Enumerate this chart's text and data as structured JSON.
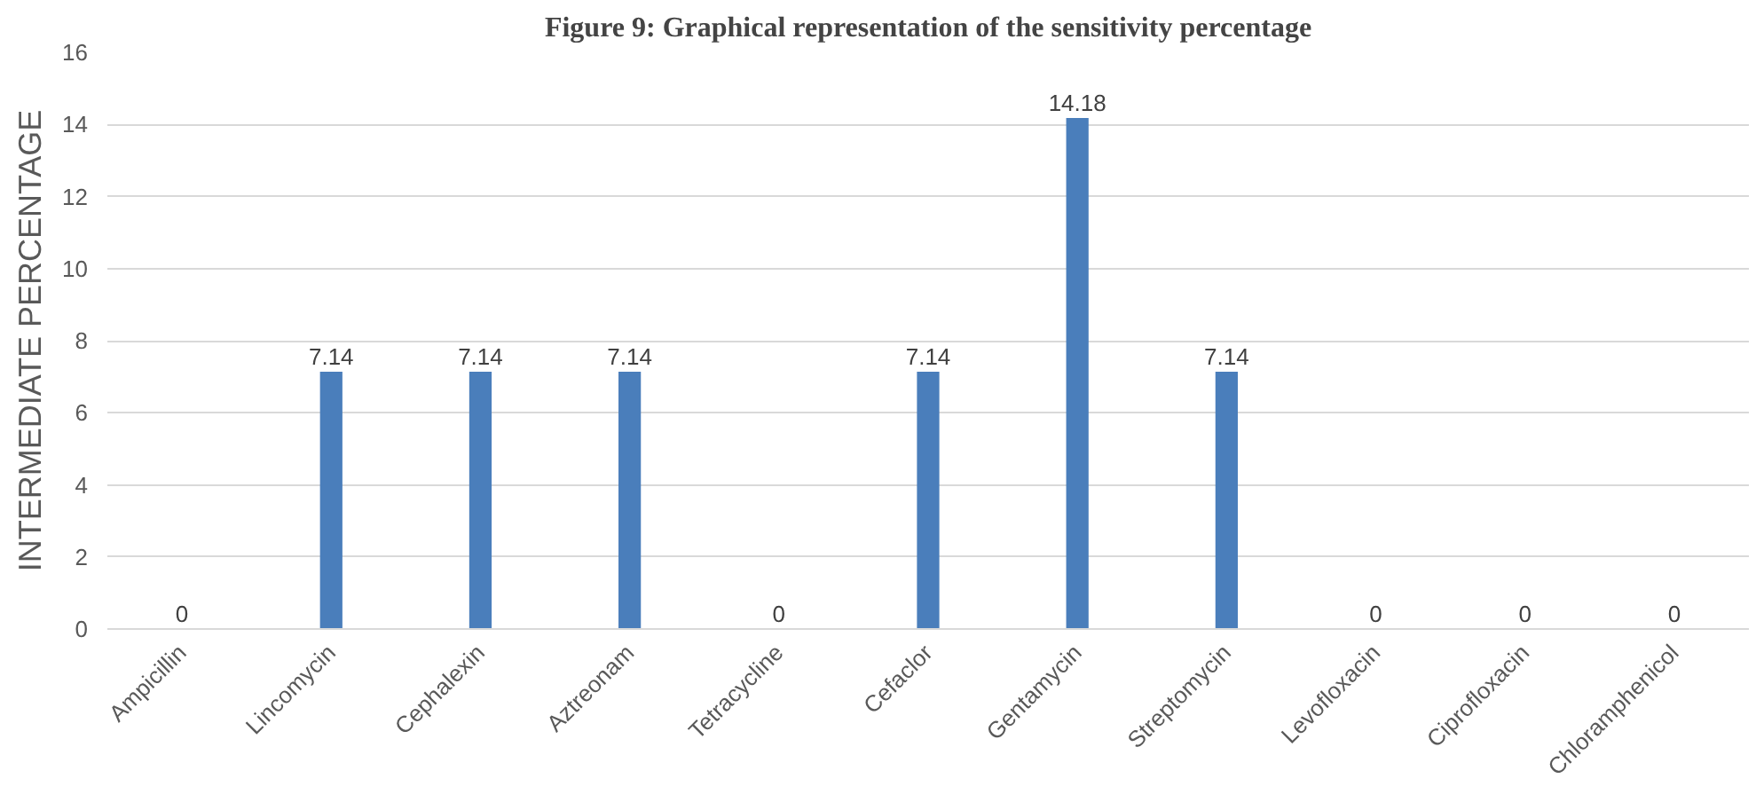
{
  "chart_data": {
    "type": "bar",
    "title": "Figure 9: Graphical representation of the sensitivity percentage",
    "ylabel": "INTERMEDIATE PERCENTAGE",
    "categories": [
      "Ampicillin",
      "Lincomycin",
      "Cephalexin",
      "Aztreonam",
      "Tetracycline",
      "Cefaclor",
      "Gentamycin",
      "Streptomycin",
      "Levofloxacin",
      "Ciprofloxacin",
      "Chloramphenicol"
    ],
    "values": [
      0,
      7.14,
      7.14,
      7.14,
      0,
      7.14,
      14.18,
      7.14,
      0,
      0,
      0
    ],
    "color": "#4a7ebb",
    "ylim": [
      0,
      16
    ],
    "yticks": [
      0,
      2,
      4,
      6,
      8,
      10,
      12,
      14,
      16
    ],
    "grid": "y",
    "data_labels": true
  }
}
